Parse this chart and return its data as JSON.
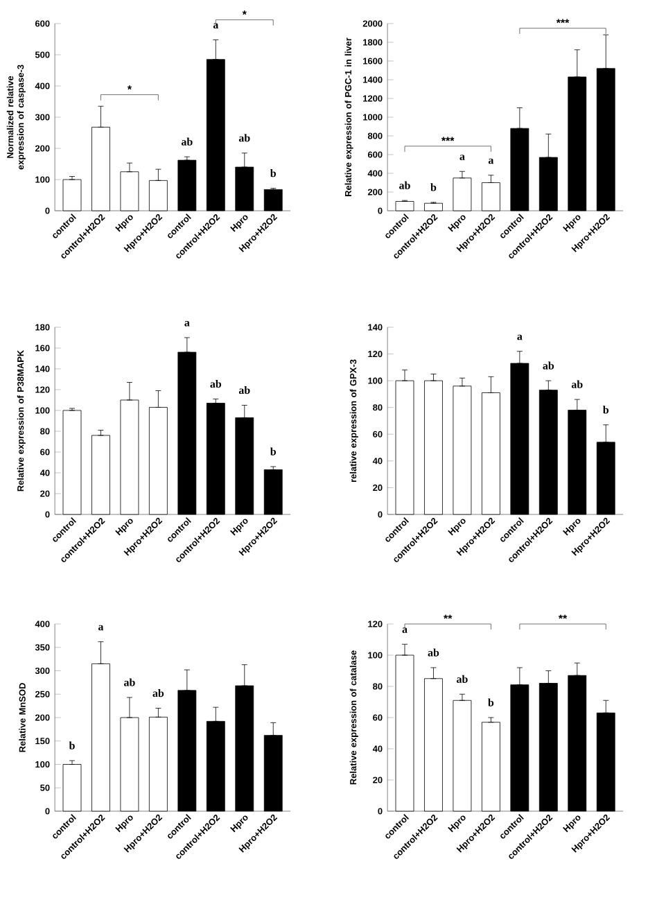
{
  "chart_data": [
    {
      "type": "bar",
      "ylabel": "Normalized relative expression of caspase-3",
      "categories": [
        "control",
        "control+H2O2",
        "Hpro",
        "Hpro+H2O2",
        "control",
        "control+H2O2",
        "Hpro",
        "Hpro+H2O2"
      ],
      "values": [
        100,
        268,
        125,
        97,
        162,
        485,
        140,
        68
      ],
      "colors": [
        "#ffffff",
        "#ffffff",
        "#ffffff",
        "#ffffff",
        "#000000",
        "#000000",
        "#000000",
        "#000000"
      ],
      "errors": [
        [
          100,
          110
        ],
        [
          268,
          335
        ],
        [
          125,
          153
        ],
        [
          97,
          133
        ],
        [
          162,
          173
        ],
        [
          485,
          548
        ],
        [
          140,
          185
        ],
        [
          68,
          72
        ]
      ],
      "value_labels": [
        null,
        null,
        null,
        null,
        "ab",
        "a",
        "ab",
        "b"
      ],
      "ylim": [
        0,
        600
      ],
      "yticks": [
        0,
        100,
        200,
        300,
        400,
        500,
        600
      ],
      "annotations": [
        "*",
        "*"
      ]
    },
    {
      "type": "bar",
      "ylabel": "Relative expression of PGC-1 in liver",
      "categories": [
        "control",
        "control+H2O2",
        "Hpro",
        "Hpro+H2O2",
        "control",
        "control+H2O2",
        "Hpro",
        "Hpro+H2O2"
      ],
      "values": [
        100,
        80,
        350,
        300,
        880,
        570,
        1430,
        1520
      ],
      "colors": [
        "#ffffff",
        "#ffffff",
        "#ffffff",
        "#ffffff",
        "#000000",
        "#000000",
        "#000000",
        "#000000"
      ],
      "errors": [
        [
          100,
          110
        ],
        [
          80,
          90
        ],
        [
          350,
          420
        ],
        [
          300,
          380
        ],
        [
          880,
          1100
        ],
        [
          570,
          820
        ],
        [
          1430,
          1720
        ],
        [
          1520,
          1880
        ]
      ],
      "value_labels": [
        "ab",
        "b",
        "a",
        "a",
        null,
        null,
        null,
        null
      ],
      "ylim": [
        0,
        2000
      ],
      "yticks": [
        0,
        200,
        400,
        600,
        800,
        1000,
        1200,
        1400,
        1600,
        1800,
        2000
      ],
      "annotations": [
        "***",
        "***"
      ]
    },
    {
      "type": "bar",
      "ylabel": "Relative expression of P38MAPK",
      "categories": [
        "control",
        "control+H2O2",
        "Hpro",
        "Hpro+H2O2",
        "control",
        "control+H2O2",
        "Hpro",
        "Hpro+H2O2"
      ],
      "values": [
        100,
        76,
        110,
        103,
        156,
        107,
        93,
        43
      ],
      "colors": [
        "#ffffff",
        "#ffffff",
        "#ffffff",
        "#ffffff",
        "#000000",
        "#000000",
        "#000000",
        "#000000"
      ],
      "errors": [
        [
          100,
          102
        ],
        [
          76,
          81
        ],
        [
          110,
          127
        ],
        [
          103,
          119
        ],
        [
          156,
          170
        ],
        [
          107,
          111
        ],
        [
          93,
          105
        ],
        [
          43,
          46
        ]
      ],
      "value_labels": [
        null,
        null,
        null,
        null,
        "a",
        "ab",
        "ab",
        "b"
      ],
      "ylim": [
        0,
        180
      ],
      "yticks": [
        0,
        20,
        40,
        60,
        80,
        100,
        120,
        140,
        160,
        180
      ]
    },
    {
      "type": "bar",
      "ylabel": "relative expression of GPX-3",
      "categories": [
        "control",
        "control+H2O2",
        "Hpro",
        "Hpro+H2O2",
        "control",
        "control+H2O2",
        "Hpro",
        "Hpro+H2O2"
      ],
      "values": [
        100,
        100,
        96,
        91,
        113,
        93,
        78,
        54
      ],
      "colors": [
        "#ffffff",
        "#ffffff",
        "#ffffff",
        "#ffffff",
        "#000000",
        "#000000",
        "#000000",
        "#000000"
      ],
      "errors": [
        [
          100,
          108
        ],
        [
          100,
          105
        ],
        [
          96,
          102
        ],
        [
          91,
          103
        ],
        [
          113,
          122
        ],
        [
          93,
          100
        ],
        [
          78,
          86
        ],
        [
          54,
          67
        ]
      ],
      "value_labels": [
        null,
        null,
        null,
        null,
        "a",
        "ab",
        "ab",
        "b"
      ],
      "ylim": [
        0,
        140
      ],
      "yticks": [
        0,
        20,
        40,
        60,
        80,
        100,
        120,
        140
      ]
    },
    {
      "type": "bar",
      "ylabel": "Relative MnSOD",
      "categories": [
        "control",
        "control+H2O2",
        "Hpro",
        "Hpro+H2O2",
        "control",
        "control+H2O2",
        "Hpro",
        "Hpro+H2O2"
      ],
      "values": [
        100,
        315,
        200,
        201,
        258,
        192,
        268,
        162
      ],
      "colors": [
        "#ffffff",
        "#ffffff",
        "#ffffff",
        "#ffffff",
        "#000000",
        "#000000",
        "#000000",
        "#000000"
      ],
      "errors": [
        [
          100,
          108
        ],
        [
          315,
          362
        ],
        [
          200,
          243
        ],
        [
          201,
          220
        ],
        [
          258,
          302
        ],
        [
          192,
          222
        ],
        [
          268,
          313
        ],
        [
          162,
          189
        ]
      ],
      "value_labels": [
        "b",
        "a",
        "ab",
        "ab",
        null,
        null,
        null,
        null
      ],
      "ylim": [
        0,
        400
      ],
      "yticks": [
        0,
        50,
        100,
        150,
        200,
        250,
        300,
        350,
        400
      ]
    },
    {
      "type": "bar",
      "ylabel": "Relative expression of catalase",
      "categories": [
        "control",
        "control+H2O2",
        "Hpro",
        "Hpro+H2O2",
        "control",
        "control+H2O2",
        "Hpro",
        "Hpro+H2O2"
      ],
      "values": [
        100,
        85,
        71,
        57,
        81,
        82,
        87,
        63
      ],
      "colors": [
        "#ffffff",
        "#ffffff",
        "#ffffff",
        "#ffffff",
        "#000000",
        "#000000",
        "#000000",
        "#000000"
      ],
      "errors": [
        [
          100,
          107
        ],
        [
          85,
          92
        ],
        [
          71,
          75
        ],
        [
          57,
          60
        ],
        [
          81,
          92
        ],
        [
          82,
          90
        ],
        [
          87,
          95
        ],
        [
          63,
          71
        ]
      ],
      "value_labels": [
        "a",
        "ab",
        "ab",
        "b",
        null,
        null,
        null,
        null
      ],
      "ylim": [
        0,
        120
      ],
      "yticks": [
        0,
        20,
        40,
        60,
        80,
        100,
        120
      ],
      "annotations": [
        "**",
        "**"
      ]
    }
  ]
}
